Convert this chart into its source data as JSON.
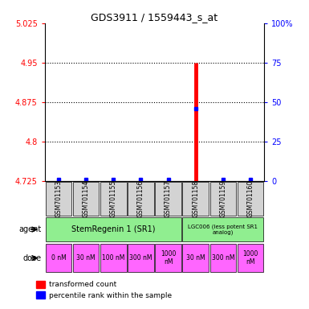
{
  "title": "GDS3911 / 1559443_s_at",
  "samples": [
    "GSM701153",
    "GSM701154",
    "GSM701155",
    "GSM701156",
    "GSM701157",
    "GSM701158",
    "GSM701159",
    "GSM701160"
  ],
  "red_values": [
    4.727,
    4.727,
    4.727,
    4.727,
    4.727,
    4.95,
    4.727,
    4.727
  ],
  "blue_values": [
    4.727,
    4.728,
    4.728,
    4.728,
    4.728,
    4.862,
    4.728,
    4.728
  ],
  "ymin": 4.725,
  "ymax": 5.025,
  "yticks": [
    4.725,
    4.8,
    4.875,
    4.95,
    5.025
  ],
  "ytick_labels": [
    "4.725",
    "4.8",
    "4.875",
    "4.95",
    "5.025"
  ],
  "y2ticks": [
    0,
    25,
    50,
    75,
    100
  ],
  "y2tick_labels": [
    "0",
    "25",
    "50",
    "75",
    "100%"
  ],
  "agent_groups": [
    {
      "label": "StemRegenin 1 (SR1)",
      "span": 5,
      "color": "#90EE90"
    },
    {
      "label": "LGC006 (less potent SR1\nanalog)",
      "span": 3,
      "color": "#90EE90"
    }
  ],
  "dose_row": [
    "0 nM",
    "30 nM",
    "100 nM",
    "300 nM",
    "1000\nnM",
    "30 nM",
    "300 nM",
    "1000\nnM"
  ],
  "dose_color": "#FF66FF",
  "bar_color": "red",
  "dot_color": "blue",
  "sample_bg": "#d3d3d3",
  "legend_red": "transformed count",
  "legend_blue": "percentile rank within the sample",
  "agent_label": "agent",
  "dose_label": "dose"
}
